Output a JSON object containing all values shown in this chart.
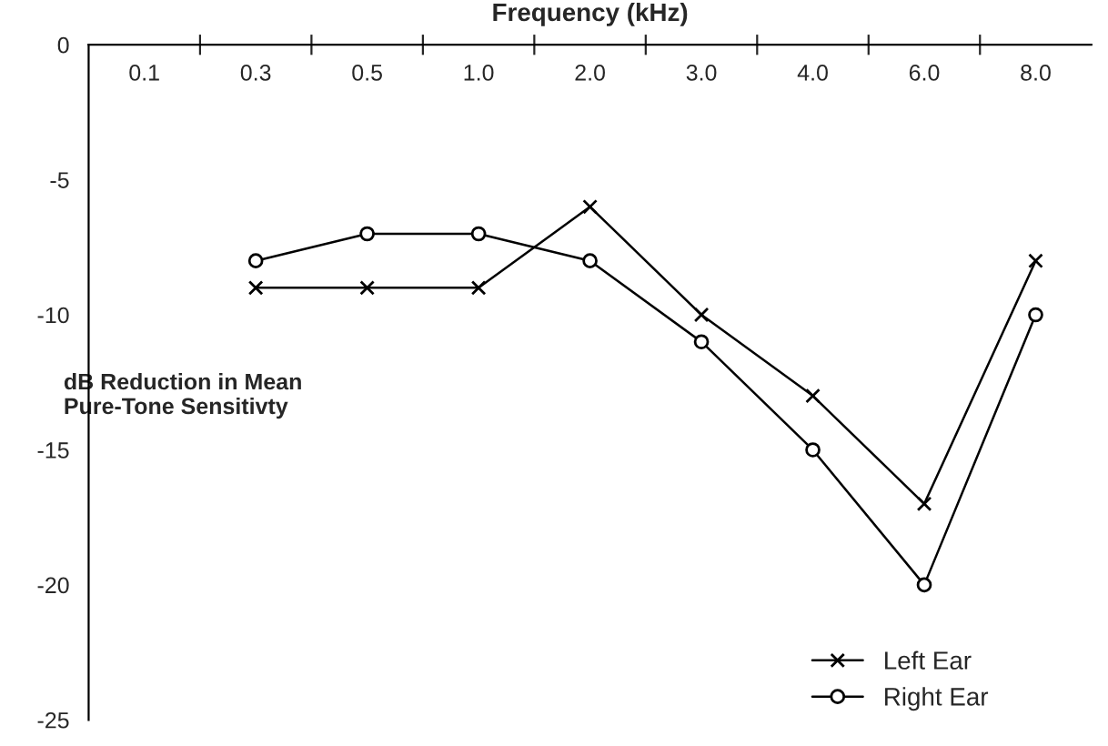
{
  "chart_data": {
    "type": "line",
    "xlabel": "Frequency (kHz)",
    "ylabel": "dB Reduction in Mean\nPure-Tone Sensitivty",
    "categories": [
      "0.1",
      "0.3",
      "0.5",
      "1.0",
      "2.0",
      "3.0",
      "4.0",
      "6.0",
      "8.0"
    ],
    "series": [
      {
        "name": "Left Ear",
        "color": "#000000",
        "marker": "cross",
        "values": [
          null,
          -9,
          -9,
          -9,
          -6,
          -10,
          -13,
          -17,
          -8
        ]
      },
      {
        "name": "Right Ear",
        "color": "#000000",
        "marker": "circle",
        "values": [
          null,
          -8,
          -7,
          -7,
          -8,
          -11,
          -15,
          -20,
          -10
        ]
      }
    ],
    "ylim": [
      -25,
      0
    ],
    "yticks": [
      -25,
      -20,
      -15,
      -10,
      -5,
      0
    ],
    "grid": false,
    "legend": "bottom right",
    "line_style": "solid"
  }
}
